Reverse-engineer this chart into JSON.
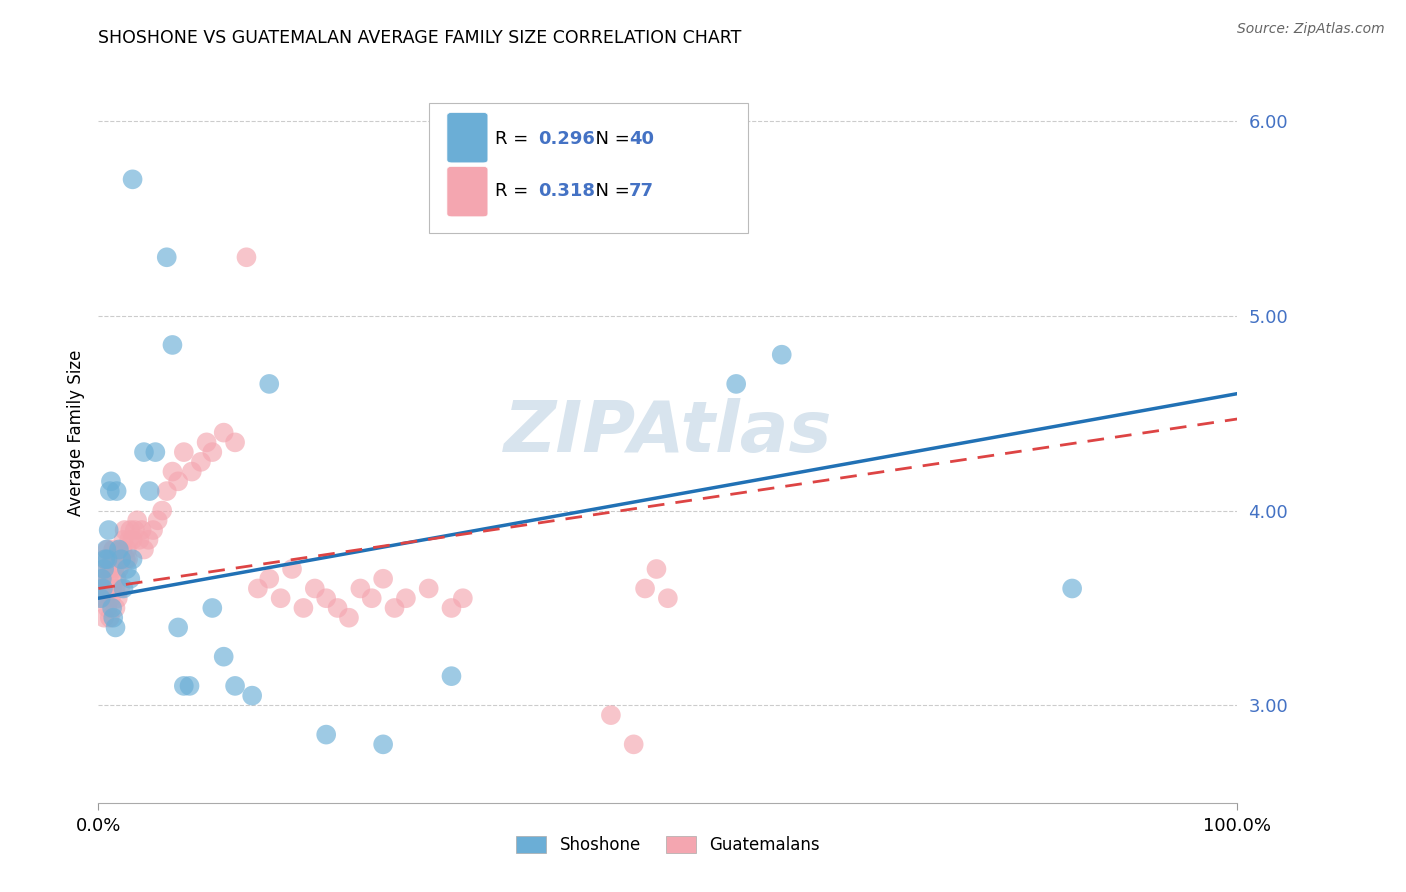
{
  "title": "SHOSHONE VS GUATEMALAN AVERAGE FAMILY SIZE CORRELATION CHART",
  "source": "Source: ZipAtlas.com",
  "ylabel": "Average Family Size",
  "watermark": "ZIPAtlas",
  "xlim": [
    0.0,
    1.0
  ],
  "ylim": [
    2.5,
    6.3
  ],
  "yticks": [
    3.0,
    4.0,
    5.0,
    6.0
  ],
  "xtick_vals": [
    0.0,
    1.0
  ],
  "xtick_labels": [
    "0.0%",
    "100.0%"
  ],
  "legend_R_shoshone": "0.296",
  "legend_N_shoshone": "40",
  "legend_R_guatemalan": "0.318",
  "legend_N_guatemalan": "77",
  "scatter_blue": "#6baed6",
  "scatter_pink": "#f4a6b0",
  "line_blue": "#2171b5",
  "line_pink": "#d44",
  "grid_color": "#cccccc",
  "watermark_color": "#d8e4ee",
  "axis_color": "#4472C4",
  "background": "#ffffff",
  "shoshone_x": [
    0.002,
    0.003,
    0.004,
    0.005,
    0.006,
    0.007,
    0.008,
    0.009,
    0.01,
    0.011,
    0.012,
    0.013,
    0.015,
    0.016,
    0.018,
    0.02,
    0.022,
    0.025,
    0.028,
    0.03,
    0.03,
    0.04,
    0.045,
    0.05,
    0.06,
    0.065,
    0.07,
    0.075,
    0.08,
    0.1,
    0.11,
    0.12,
    0.135,
    0.15,
    0.2,
    0.25,
    0.31,
    0.56,
    0.6,
    0.855
  ],
  "shoshone_y": [
    3.55,
    3.65,
    3.6,
    3.7,
    3.75,
    3.8,
    3.75,
    3.9,
    4.1,
    4.15,
    3.5,
    3.45,
    3.4,
    4.1,
    3.8,
    3.75,
    3.6,
    3.7,
    3.65,
    5.7,
    3.75,
    4.3,
    4.1,
    4.3,
    5.3,
    4.85,
    3.4,
    3.1,
    3.1,
    3.5,
    3.25,
    3.1,
    3.05,
    4.65,
    2.85,
    2.8,
    3.15,
    4.65,
    4.8,
    3.6
  ],
  "guatemalan_x": [
    0.002,
    0.003,
    0.004,
    0.005,
    0.005,
    0.006,
    0.006,
    0.007,
    0.008,
    0.008,
    0.009,
    0.01,
    0.01,
    0.011,
    0.012,
    0.012,
    0.013,
    0.014,
    0.015,
    0.015,
    0.016,
    0.017,
    0.017,
    0.018,
    0.019,
    0.02,
    0.021,
    0.022,
    0.023,
    0.024,
    0.025,
    0.026,
    0.027,
    0.028,
    0.03,
    0.032,
    0.034,
    0.036,
    0.038,
    0.04,
    0.044,
    0.048,
    0.052,
    0.056,
    0.06,
    0.065,
    0.07,
    0.075,
    0.082,
    0.09,
    0.095,
    0.1,
    0.11,
    0.12,
    0.13,
    0.14,
    0.15,
    0.16,
    0.17,
    0.18,
    0.19,
    0.2,
    0.21,
    0.22,
    0.23,
    0.24,
    0.25,
    0.26,
    0.27,
    0.29,
    0.31,
    0.32,
    0.45,
    0.47,
    0.48,
    0.49,
    0.5
  ],
  "guatemalan_y": [
    3.55,
    3.6,
    3.65,
    3.7,
    3.45,
    3.55,
    3.75,
    3.6,
    3.5,
    3.8,
    3.65,
    3.7,
    3.45,
    3.55,
    3.6,
    3.75,
    3.8,
    3.7,
    3.6,
    3.5,
    3.65,
    3.75,
    3.55,
    3.7,
    3.6,
    3.75,
    3.8,
    3.85,
    3.9,
    3.75,
    3.8,
    3.75,
    3.85,
    3.9,
    3.85,
    3.9,
    3.95,
    3.85,
    3.9,
    3.8,
    3.85,
    3.9,
    3.95,
    4.0,
    4.1,
    4.2,
    4.15,
    4.3,
    4.2,
    4.25,
    4.35,
    4.3,
    4.4,
    4.35,
    5.3,
    3.6,
    3.65,
    3.55,
    3.7,
    3.5,
    3.6,
    3.55,
    3.5,
    3.45,
    3.6,
    3.55,
    3.65,
    3.5,
    3.55,
    3.6,
    3.5,
    3.55,
    2.95,
    2.8,
    3.6,
    3.7,
    3.55
  ]
}
